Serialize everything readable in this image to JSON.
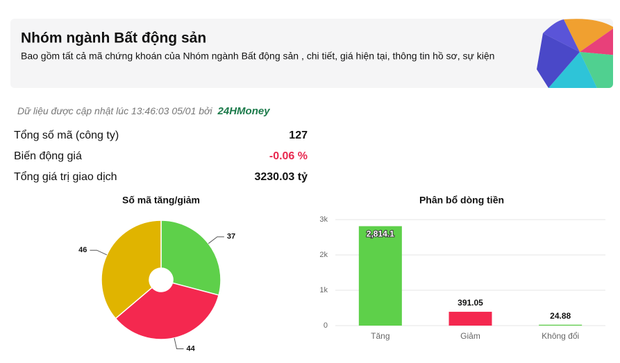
{
  "header": {
    "title": "Nhóm ngành Bất động sản",
    "subtitle": "Bao gồm tất cả mã chứng khoán của Nhóm ngành Bất động sản , chi tiết, giá hiện tại, thông tin hồ sơ, sự kiện"
  },
  "update": {
    "text": "Dữ liệu được cập nhật lúc 13:46:03 05/01 bởi",
    "brand": "24HMoney"
  },
  "stats": [
    {
      "label": "Tổng số mã (công ty)",
      "value": "127"
    },
    {
      "label": "Biến động giá",
      "value": "-0.06 %"
    },
    {
      "label": "Tổng giá trị giao dịch",
      "value": "3230.03 tỷ"
    }
  ],
  "chart_data": [
    {
      "type": "pie",
      "title": "Số mã tăng/giảm",
      "values": [
        37,
        44,
        46
      ],
      "colors": [
        "#5ed04a",
        "#f4284f",
        "#e0b400"
      ]
    },
    {
      "type": "bar",
      "title": "Phân bổ dòng tiền",
      "categories": [
        "Tăng",
        "Giảm",
        "Không đổi"
      ],
      "values": [
        2814.1,
        391.05,
        24.88
      ],
      "value_labels": [
        "2,814.1",
        "391.05",
        "24.88"
      ],
      "colors": [
        "#5ed04a",
        "#f4284f",
        "#5ed04a"
      ],
      "ylim": [
        0,
        3000
      ],
      "yticks": [
        0,
        {
          "value": 1000,
          "label": "1k"
        },
        {
          "value": 2000,
          "label": "2k"
        },
        {
          "value": 3000,
          "label": "3k"
        }
      ],
      "grid": true
    }
  ]
}
